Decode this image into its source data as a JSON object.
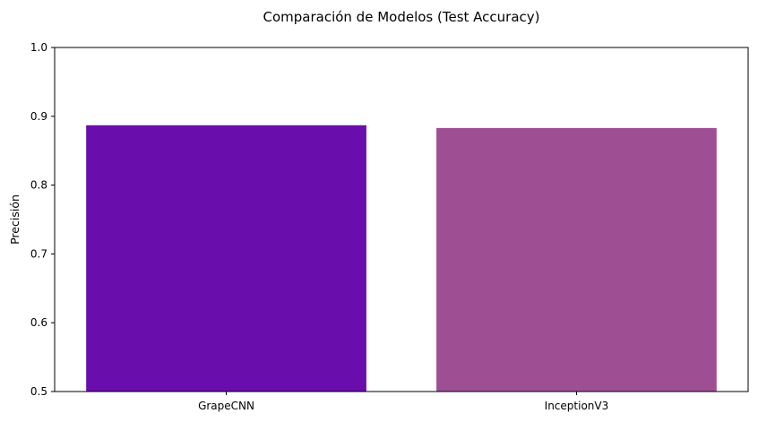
{
  "chart_data": {
    "type": "bar",
    "title": "Comparación de Modelos (Test Accuracy)",
    "xlabel": "",
    "ylabel": "Precisión",
    "categories": [
      "GrapeCNN",
      "InceptionV3"
    ],
    "values": [
      0.887,
      0.883
    ],
    "colors": [
      "#6a0dad",
      "#9e4f94"
    ],
    "ylim": [
      0.5,
      1.0
    ],
    "yticks": [
      0.5,
      0.6,
      0.7,
      0.8,
      0.9,
      1.0
    ],
    "ytick_labels": [
      "0.5",
      "0.6",
      "0.7",
      "0.8",
      "0.9",
      "1.0"
    ],
    "grid": false,
    "legend": "none"
  }
}
